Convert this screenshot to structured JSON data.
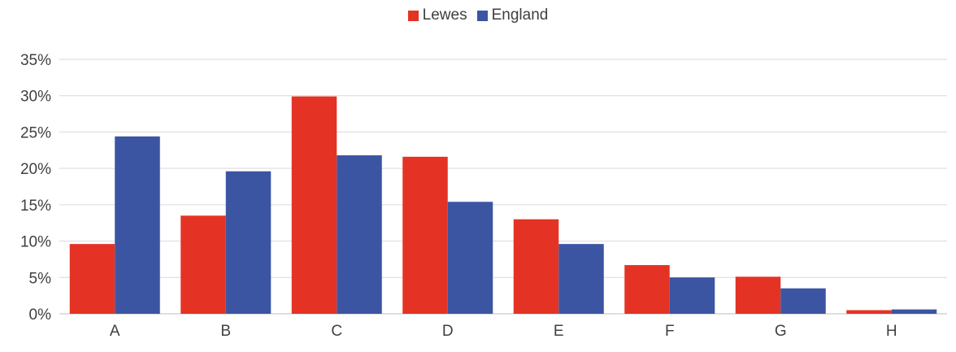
{
  "chart_data": {
    "type": "bar",
    "categories": [
      "A",
      "B",
      "C",
      "D",
      "E",
      "F",
      "G",
      "H"
    ],
    "series": [
      {
        "name": "Lewes",
        "color": "#e43324",
        "values": [
          9.6,
          13.5,
          29.9,
          21.6,
          13.0,
          6.7,
          5.1,
          0.5
        ]
      },
      {
        "name": "England",
        "color": "#3b55a3",
        "values": [
          24.4,
          19.6,
          21.8,
          15.4,
          9.6,
          5.0,
          3.5,
          0.6
        ]
      }
    ],
    "title": "",
    "xlabel": "",
    "ylabel": "",
    "ylim": [
      0,
      35
    ],
    "yticks": [
      "0%",
      "5%",
      "10%",
      "15%",
      "20%",
      "25%",
      "30%",
      "35%"
    ],
    "grid": true,
    "legend_position": "top-center"
  }
}
